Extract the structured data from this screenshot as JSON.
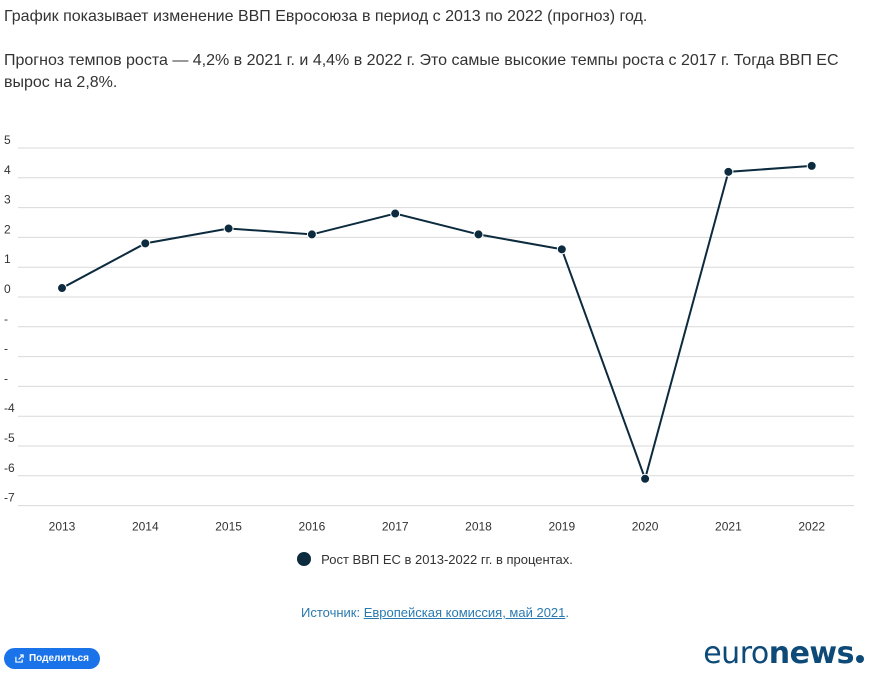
{
  "intro": {
    "line1": "График показывает изменение ВВП Евросоюза в период с 2013 по 2022 (прогноз) год.",
    "line2": "Прогноз темпов роста — 4,2% в 2021 г. и 4,4% в 2022 г. Это самые высокие темпы роста с 2017 г. Тогда ВВП ЕС вырос на 2,8%."
  },
  "chart_data": {
    "type": "line",
    "categories": [
      "2013",
      "2014",
      "2015",
      "2016",
      "2017",
      "2018",
      "2019",
      "2020",
      "2021",
      "2022"
    ],
    "series": [
      {
        "name": "Рост ВВП ЕС в 2013-2022 гг. в процентах.",
        "values": [
          0.3,
          1.8,
          2.3,
          2.1,
          2.8,
          2.1,
          1.6,
          -6.1,
          4.2,
          4.4
        ]
      }
    ],
    "y_ticks": [
      "5",
      "4",
      "3",
      "2",
      "1",
      "0",
      "-",
      "-",
      "-",
      "-4",
      "-5",
      "-6",
      "-7"
    ],
    "ylim": [
      -7,
      5
    ],
    "grid": true,
    "legend": "bottom-center",
    "line_color": "#0d2b3e",
    "grid_color": "#d9d9d9"
  },
  "legend": {
    "label": "Рост ВВП ЕС в 2013-2022 гг. в процентах."
  },
  "source": {
    "prefix": "Источник: ",
    "link": "Европейская комиссия, май 2021",
    "suffix": "."
  },
  "share": {
    "label": "Поделиться",
    "icon": "share-icon"
  },
  "logo": {
    "part1": "euro",
    "part2": "news"
  }
}
